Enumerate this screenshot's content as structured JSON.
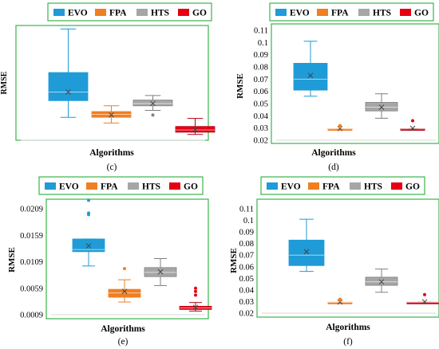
{
  "chart_data": [
    {
      "type": "box",
      "panel_label": "(c)",
      "xlabel": "Algorithms",
      "ylabel": "RMSE",
      "ylim": [
        0,
        10
      ],
      "y_ticks": [],
      "y_tick_labels": [],
      "legend": [
        "EVO",
        "FPA",
        "HTS",
        "GO"
      ],
      "legend_position": "top",
      "series": [
        {
          "name": "EVO",
          "color": "#1f9bd7",
          "whisker_low": 2.0,
          "q1": 3.45,
          "median": 4.2,
          "q3": 5.9,
          "whisker_high": 9.7,
          "mean": 4.2,
          "outliers": []
        },
        {
          "name": "FPA",
          "color": "#f07f22",
          "whisker_low": 1.5,
          "q1": 2.0,
          "median": 2.25,
          "q3": 2.5,
          "whisker_high": 3.0,
          "mean": 2.2,
          "outliers": []
        },
        {
          "name": "HTS",
          "color": "#a6a6a6",
          "whisker_low": 2.6,
          "q1": 3.0,
          "median": 3.2,
          "q3": 3.5,
          "whisker_high": 3.9,
          "mean": 3.2,
          "outliers": [
            2.2
          ]
        },
        {
          "name": "GO",
          "color": "#e60012",
          "whisker_low": 0.5,
          "q1": 0.7,
          "median": 0.9,
          "q3": 1.2,
          "whisker_high": 1.9,
          "mean": 0.9,
          "outliers": []
        }
      ]
    },
    {
      "type": "box",
      "panel_label": "(d)",
      "xlabel": "Algorithms",
      "ylabel": "RMSE",
      "ylim": [
        0.02,
        0.11
      ],
      "y_ticks": [
        0.02,
        0.03,
        0.04,
        0.05,
        0.06,
        0.07,
        0.08,
        0.09,
        0.1,
        0.11
      ],
      "y_tick_labels": [
        "0.02",
        "0.03",
        "0.04",
        "0.05",
        "0.06",
        "0.07",
        "0.08",
        "0.09",
        "0.1",
        "0.11"
      ],
      "legend": [
        "EVO",
        "FPA",
        "HTS",
        "GO"
      ],
      "legend_position": "top",
      "series": [
        {
          "name": "EVO",
          "color": "#1f9bd7",
          "whisker_low": 0.056,
          "q1": 0.061,
          "median": 0.07,
          "q3": 0.083,
          "whisker_high": 0.101,
          "mean": 0.073,
          "outliers": []
        },
        {
          "name": "FPA",
          "color": "#f07f22",
          "whisker_low": 0.0292,
          "q1": 0.0292,
          "median": 0.0293,
          "q3": 0.0294,
          "whisker_high": 0.0294,
          "mean": 0.0296,
          "outliers": [
            0.031,
            0.032
          ]
        },
        {
          "name": "HTS",
          "color": "#a6a6a6",
          "whisker_low": 0.038,
          "q1": 0.044,
          "median": 0.047,
          "q3": 0.051,
          "whisker_high": 0.058,
          "mean": 0.047,
          "outliers": []
        },
        {
          "name": "GO",
          "color": "#e60012",
          "whisker_low": 0.0292,
          "q1": 0.0292,
          "median": 0.0293,
          "q3": 0.0294,
          "whisker_high": 0.0294,
          "mean": 0.0298,
          "outliers": [
            0.036
          ]
        }
      ]
    },
    {
      "type": "box",
      "panel_label": "(e)",
      "xlabel": "Algorithms",
      "ylabel": "RMSE",
      "ylim": [
        0.0009,
        0.0209
      ],
      "y_ticks": [
        0.0009,
        0.0059,
        0.0109,
        0.0159,
        0.0209
      ],
      "y_tick_labels": [
        "0.0009",
        "0.0059",
        "0.0109",
        "0.0159",
        "0.0209"
      ],
      "legend": [
        "EVO",
        "FPA",
        "HTS",
        "GO"
      ],
      "legend_position": "top",
      "series": [
        {
          "name": "EVO",
          "color": "#1f9bd7",
          "whisker_low": 0.0101,
          "q1": 0.0128,
          "median": 0.0132,
          "q3": 0.0152,
          "whisker_high": 0.0152,
          "mean": 0.0139,
          "outliers": [
            0.0198,
            0.0201,
            0.0225
          ]
        },
        {
          "name": "FPA",
          "color": "#f07f22",
          "whisker_low": 0.0033,
          "q1": 0.0042,
          "median": 0.005,
          "q3": 0.0057,
          "whisker_high": 0.0075,
          "mean": 0.0053,
          "outliers": [
            0.0096
          ]
        },
        {
          "name": "HTS",
          "color": "#a6a6a6",
          "whisker_low": 0.0064,
          "q1": 0.0081,
          "median": 0.0089,
          "q3": 0.0098,
          "whisker_high": 0.0115,
          "mean": 0.009,
          "outliers": []
        },
        {
          "name": "GO",
          "color": "#e60012",
          "whisker_low": 0.0016,
          "q1": 0.0019,
          "median": 0.0022,
          "q3": 0.0025,
          "whisker_high": 0.0032,
          "mean": 0.0023,
          "outliers": [
            0.0046,
            0.0053,
            0.0059
          ]
        }
      ]
    },
    {
      "type": "box",
      "panel_label": "(f)",
      "xlabel": "Algorithms",
      "ylabel": "RMSE",
      "ylim": [
        0.02,
        0.11
      ],
      "y_ticks": [
        0.02,
        0.03,
        0.04,
        0.05,
        0.06,
        0.07,
        0.08,
        0.09,
        0.1,
        0.11
      ],
      "y_tick_labels": [
        "0.02",
        "0.03",
        "0.04",
        "0.05",
        "0.06",
        "0.07",
        "0.08",
        "0.09",
        "0.1",
        "0.11"
      ],
      "legend": [
        "EVO",
        "FPA",
        "HTS",
        "GO"
      ],
      "legend_position": "top",
      "series": [
        {
          "name": "EVO",
          "color": "#1f9bd7",
          "whisker_low": 0.056,
          "q1": 0.061,
          "median": 0.07,
          "q3": 0.083,
          "whisker_high": 0.101,
          "mean": 0.073,
          "outliers": []
        },
        {
          "name": "FPA",
          "color": "#f07f22",
          "whisker_low": 0.0292,
          "q1": 0.0292,
          "median": 0.0293,
          "q3": 0.0294,
          "whisker_high": 0.0294,
          "mean": 0.0296,
          "outliers": [
            0.031,
            0.032
          ]
        },
        {
          "name": "HTS",
          "color": "#a6a6a6",
          "whisker_low": 0.038,
          "q1": 0.044,
          "median": 0.047,
          "q3": 0.051,
          "whisker_high": 0.058,
          "mean": 0.047,
          "outliers": []
        },
        {
          "name": "GO",
          "color": "#e60012",
          "whisker_low": 0.0292,
          "q1": 0.0292,
          "median": 0.0293,
          "q3": 0.0294,
          "whisker_high": 0.0294,
          "mean": 0.0298,
          "outliers": [
            0.036
          ]
        }
      ]
    }
  ]
}
